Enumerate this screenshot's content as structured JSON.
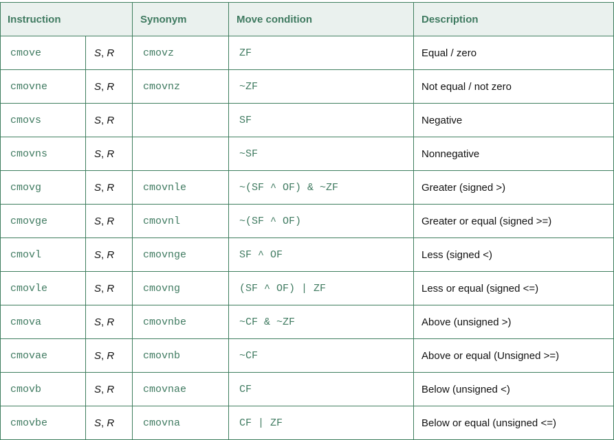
{
  "headers": {
    "instruction": "Instruction",
    "synonym": "Synonym",
    "condition": "Move condition",
    "description": "Description"
  },
  "rows": [
    {
      "instr": "cmove",
      "op1": "S",
      "op2": "R",
      "syn": "cmovz",
      "cond": "ZF",
      "desc": "Equal / zero"
    },
    {
      "instr": "cmovne",
      "op1": "S",
      "op2": "R",
      "syn": "cmovnz",
      "cond": "~ZF",
      "desc": "Not equal / not zero"
    },
    {
      "instr": "cmovs",
      "op1": "S",
      "op2": "R",
      "syn": "",
      "cond": "SF",
      "desc": "Negative"
    },
    {
      "instr": "cmovns",
      "op1": "S",
      "op2": "R",
      "syn": "",
      "cond": "~SF",
      "desc": "Nonnegative"
    },
    {
      "instr": "cmovg",
      "op1": "S",
      "op2": "R",
      "syn": "cmovnle",
      "cond": "~(SF ^ OF) & ~ZF",
      "desc": "Greater (signed >)"
    },
    {
      "instr": "cmovge",
      "op1": "S",
      "op2": "R",
      "syn": "cmovnl",
      "cond": "~(SF ^ OF)",
      "desc": "Greater or equal (signed >=)"
    },
    {
      "instr": "cmovl",
      "op1": "S",
      "op2": "R",
      "syn": "cmovnge",
      "cond": "SF ^ OF",
      "desc": "Less (signed <)"
    },
    {
      "instr": "cmovle",
      "op1": "S",
      "op2": "R",
      "syn": "cmovng",
      "cond": "(SF ^ OF) | ZF",
      "desc": "Less or equal (signed <=)"
    },
    {
      "instr": "cmova",
      "op1": "S",
      "op2": "R",
      "syn": "cmovnbe",
      "cond": "~CF & ~ZF",
      "desc": "Above (unsigned >)"
    },
    {
      "instr": "cmovae",
      "op1": "S",
      "op2": "R",
      "syn": "cmovnb",
      "cond": "~CF",
      "desc": "Above or equal (Unsigned >=)"
    },
    {
      "instr": "cmovb",
      "op1": "S",
      "op2": "R",
      "syn": "cmovnae",
      "cond": "CF",
      "desc": "Below (unsigned <)"
    },
    {
      "instr": "cmovbe",
      "op1": "S",
      "op2": "R",
      "syn": "cmovna",
      "cond": "CF | ZF",
      "desc": "Below or equal (unsigned <=)"
    }
  ]
}
